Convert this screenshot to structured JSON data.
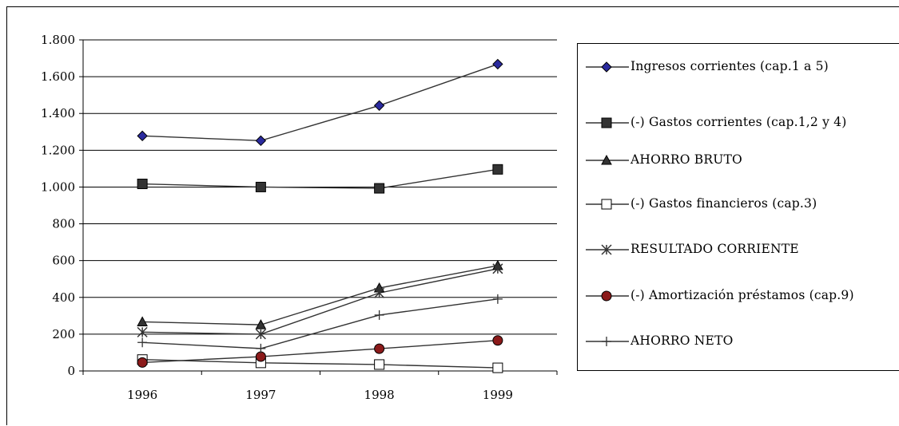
{
  "chart_data": {
    "type": "line",
    "categories": [
      "1996",
      "1997",
      "1998",
      "1999"
    ],
    "ylim": [
      0,
      1800
    ],
    "yticks": [
      0,
      200,
      400,
      600,
      800,
      1000,
      1200,
      1400,
      1600,
      1800
    ],
    "ytick_labels": [
      "0",
      "200",
      "400",
      "600",
      "800",
      "1.000",
      "1.200",
      "1.400",
      "1.600",
      "1.800"
    ],
    "grid": true,
    "legend_position": "right",
    "series": [
      {
        "name": "Ingresos corrientes (cap.1 a 5)",
        "marker": "diamond",
        "fill": "#2a2a9e",
        "values": [
          1278,
          1252,
          1443,
          1668
        ]
      },
      {
        "name": "(-) Gastos corrientes (cap.1,2 y 4)",
        "marker": "square",
        "fill": "#333333",
        "values": [
          1017,
          1000,
          993,
          1096
        ]
      },
      {
        "name": "AHORRO BRUTO",
        "marker": "triangle",
        "fill": "#333333",
        "values": [
          267,
          251,
          451,
          573
        ]
      },
      {
        "name": "(-) Gastos financieros (cap.3)",
        "marker": "open-square",
        "fill": "#ffffff",
        "values": [
          62,
          44,
          35,
          17
        ]
      },
      {
        "name": "RESULTADO CORRIENTE",
        "marker": "asterisk",
        "fill": "#333333",
        "values": [
          211,
          200,
          424,
          556
        ]
      },
      {
        "name": "(-) Amortización préstamos (cap.9)",
        "marker": "circle",
        "fill": "#8b1a1a",
        "values": [
          46,
          78,
          121,
          166
        ]
      },
      {
        "name": "AHORRO NETO",
        "marker": "plus",
        "fill": "#333333",
        "values": [
          155,
          122,
          304,
          391
        ]
      }
    ]
  }
}
